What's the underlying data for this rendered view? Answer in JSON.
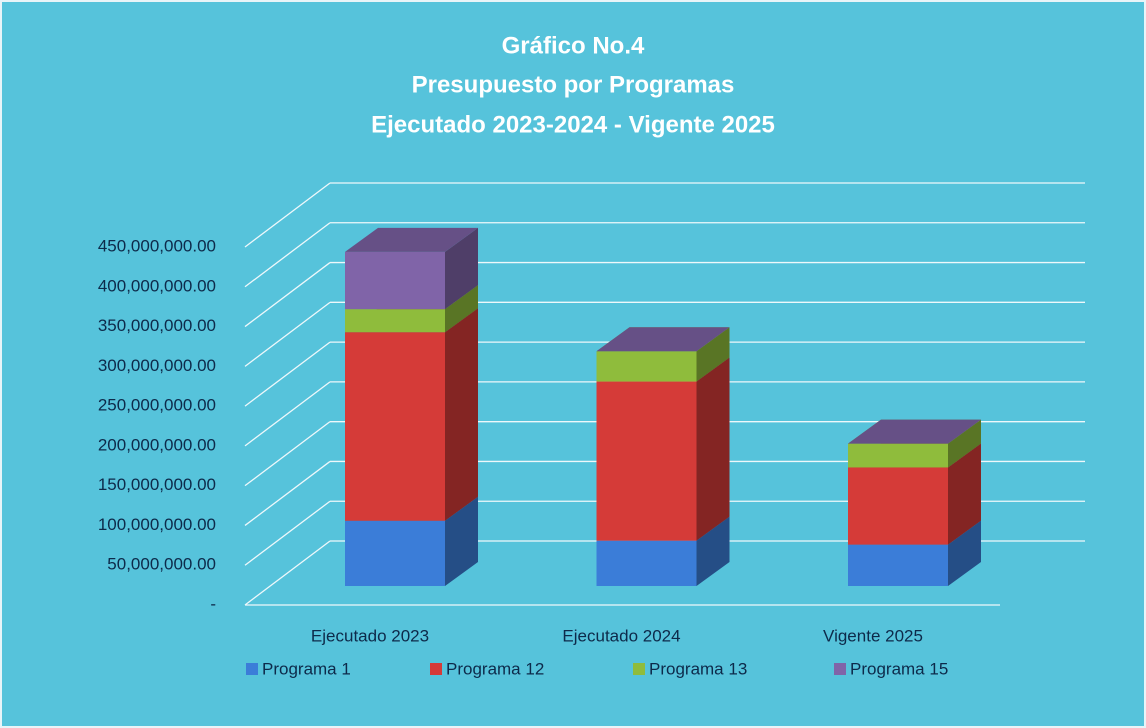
{
  "chart_data": {
    "type": "bar3d_stacked",
    "title": [
      "Gráfico No.4",
      "Presupuesto por Programas",
      "Ejecutado 2023-2024 - Vigente 2025"
    ],
    "categories": [
      "Ejecutado 2023",
      "Ejecutado 2024",
      "Vigente 2025"
    ],
    "series": [
      {
        "name": "Programa 1",
        "color": "#3b7dd8",
        "values": [
          82000000,
          57000000,
          52000000
        ]
      },
      {
        "name": "Programa 12",
        "color": "#d53b38",
        "values": [
          237000000,
          200000000,
          97000000
        ]
      },
      {
        "name": "Programa 13",
        "color": "#8fbc3c",
        "values": [
          29000000,
          38000000,
          30000000
        ]
      },
      {
        "name": "Programa 15",
        "color": "#8064a8",
        "values": [
          72000000,
          0,
          0
        ]
      }
    ],
    "ylim": [
      0,
      450000000
    ],
    "yticks": [
      {
        "value": 0,
        "label": "-"
      },
      {
        "value": 50000000,
        "label": "50,000,000.00"
      },
      {
        "value": 100000000,
        "label": "100,000,000.00"
      },
      {
        "value": 150000000,
        "label": "150,000,000.00"
      },
      {
        "value": 200000000,
        "label": "200,000,000.00"
      },
      {
        "value": 250000000,
        "label": "250,000,000.00"
      },
      {
        "value": 300000000,
        "label": "300,000,000.00"
      },
      {
        "value": 350000000,
        "label": "350,000,000.00"
      },
      {
        "value": 400000000,
        "label": "400,000,000.00"
      },
      {
        "value": 450000000,
        "label": "450,000,000.00"
      }
    ],
    "grid": true,
    "legend": "bottom"
  }
}
